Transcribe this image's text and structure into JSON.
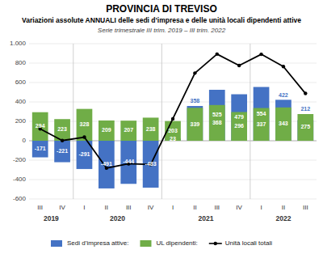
{
  "chart_data": {
    "type": "bar",
    "title": "PROVINCIA DI TREVISO",
    "subtitle": "Variazioni assolute ANNUALI delle sedi d’impresa e delle unità locali dipendenti attive",
    "annotations": [
      "Serie trimestrale III trim. 2019 – III trim. 2022"
    ],
    "categories": [
      "III",
      "IV",
      "I",
      "II",
      "III",
      "IV",
      "I",
      "II",
      "III",
      "IV",
      "I",
      "II",
      "III"
    ],
    "groups": [
      {
        "name": "2019",
        "count": 2
      },
      {
        "name": "2020",
        "count": 4
      },
      {
        "name": "2021",
        "count": 4
      },
      {
        "name": "2022",
        "count": 3
      }
    ],
    "series": [
      {
        "name": "Sedi d’impresa attive:",
        "type": "bar",
        "color": "#4472c4",
        "data_labels": true,
        "values": [
          -171,
          -221,
          -291,
          -491,
          -444,
          -483,
          23,
          358,
          525,
          479,
          554,
          422,
          212
        ]
      },
      {
        "name": "UL dipendenti:",
        "type": "bar",
        "color": "#70ad47",
        "data_labels": true,
        "values": [
          294,
          223,
          328,
          209,
          207,
          238,
          203,
          339,
          368,
          296,
          337,
          343,
          275
        ]
      },
      {
        "name": "Unità locali totali",
        "type": "line",
        "color": "#000000",
        "marker": "circle",
        "line_style": "solid",
        "values": [
          123,
          2,
          37,
          -282,
          -237,
          -245,
          226,
          697,
          893,
          775,
          891,
          765,
          487
        ]
      }
    ],
    "ylim": [
      -600,
      1000
    ],
    "yticks": [
      -600,
      -400,
      -200,
      0,
      200,
      400,
      600,
      800,
      {
        "value": 1000,
        "label": "1.000"
      }
    ],
    "grid": true,
    "legend": "bottom"
  }
}
